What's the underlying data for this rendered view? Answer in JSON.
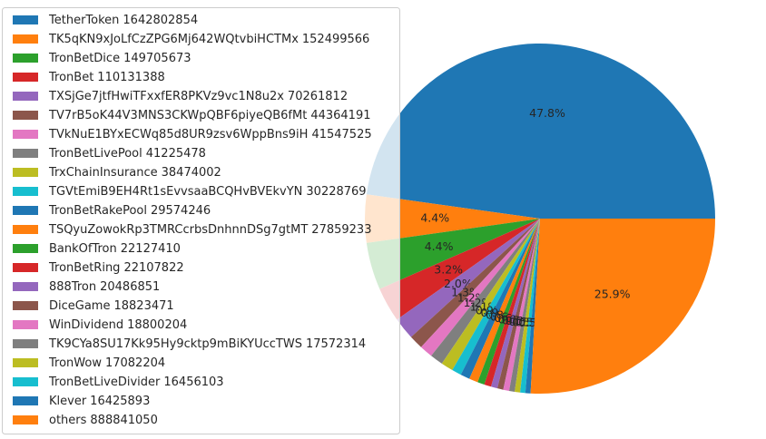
{
  "chart_data": {
    "type": "pie",
    "categories": [
      "TetherToken",
      "TK5qKN9xJoLfCzZPG6Mj642WQtvbiHCTMx",
      "TronBetDice",
      "TronBet",
      "TXSjGe7jtfHwiTFxxfER8PKVz9vc1N8u2x",
      "TV7rB5oK44V3MNS3CKWpQBF6piyeQB6fMt",
      "TVkNuE1BYxECWq85d8UR9zsv6WppBns9iH",
      "TronBetLivePool",
      "TrxChainInsurance",
      "TGVtEmiB9EH4Rt1sEvvsaaBCQHvBVEkvYN",
      "TronBetRakePool",
      "TSQyuZowokRp3TMRCcrbsDnhnnDSg7gtMT",
      "BankOfTron",
      "TronBetRing",
      "888Tron",
      "DiceGame",
      "WinDividend",
      "TK9CYa8SU17Kk95Hy9cktp9mBiKYUccTWS",
      "TronWow",
      "TronBetLiveDivider",
      "Klever",
      "others"
    ],
    "values": [
      1642802854,
      152499566,
      149705673,
      110131388,
      70261812,
      44364191,
      41547525,
      41225478,
      38474002,
      30228769,
      29574246,
      27859233,
      22127410,
      22107822,
      20486851,
      18823471,
      18800204,
      17572314,
      17082204,
      16456103,
      16425893,
      888841050
    ],
    "percent_labels": [
      "47.8%",
      "4.4%",
      "4.4%",
      "3.2%",
      "2.0%",
      "1.3%",
      "1.2%",
      "1.2%",
      "1.1%",
      "0.9%",
      "0.9%",
      "0.8%",
      "0.6%",
      "0.6%",
      "0.6%",
      "0.5%",
      "0.5%",
      "0.5%",
      "0.5%",
      "0.5%",
      "0.5%",
      "25.9%"
    ],
    "colors": [
      "#1f77b4",
      "#ff7f0e",
      "#2ca02c",
      "#d62728",
      "#9467bd",
      "#8c564b",
      "#e377c2",
      "#7f7f7f",
      "#bcbd22",
      "#17becf",
      "#1f77b4",
      "#ff7f0e",
      "#2ca02c",
      "#d62728",
      "#9467bd",
      "#8c564b",
      "#e377c2",
      "#7f7f7f",
      "#bcbd22",
      "#17becf",
      "#1f77b4",
      "#ff7f0e"
    ],
    "legend": "upper left"
  }
}
